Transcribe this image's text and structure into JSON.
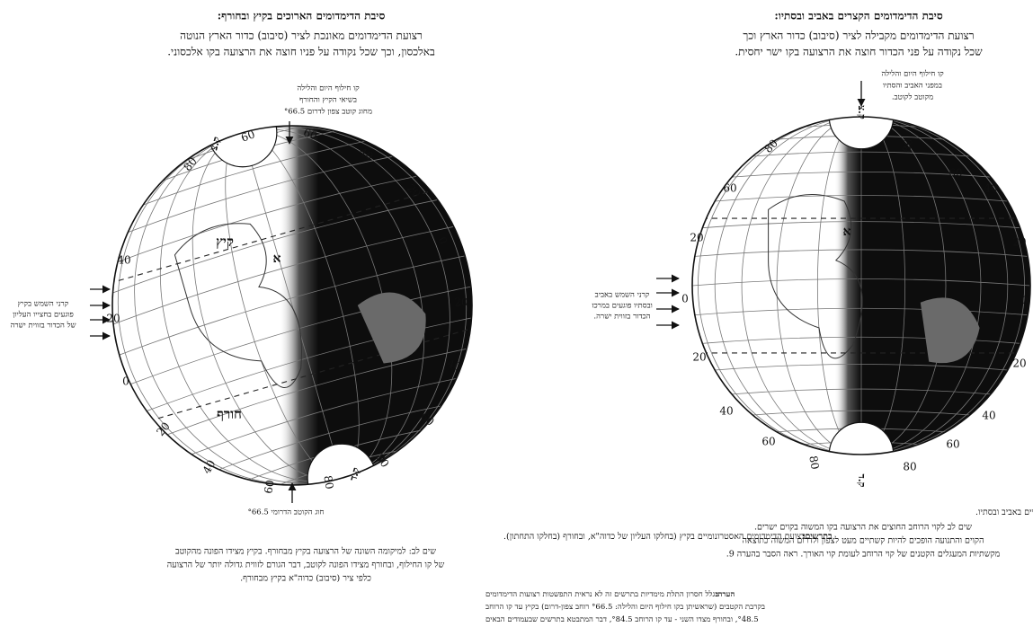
{
  "left_panel": {
    "title": "סיבת הדימדומים הארוכים בקיץ ובחורף:",
    "description": [
      "רצועת הדימדומים מאונכת לציר (סיבוב) כדור הארץ הנוטה",
      "באלכסון, וכך שכל נקודה על פניו חוצה את הרצועה בקו אלכסוני."
    ],
    "top_note": [
      "קו חילוף היום והלילה",
      "בשיאי הקיץ והחורף",
      "מחוג קוטב צפון לדרום °66.5"
    ],
    "side_note": [
      "קרני השמש בקיץ",
      "פוגעים בחצייו העליון",
      "של הכדור בזווית ישרה"
    ],
    "bottom_note": "חוג הקוטב הדרומי °66.5",
    "globe_labels": {
      "north_pole": "ק.צ",
      "summer": "קיץ",
      "place": "א",
      "winter": "חורף",
      "south_pole": "ק.ד"
    },
    "latitude_labels": [
      "80",
      "60",
      "60",
      "40",
      "20",
      "0",
      "20",
      "40",
      "60",
      "80",
      "80",
      "60",
      "40",
      "20",
      "0",
      "20",
      "40"
    ],
    "caption_lead": "בתרשים:",
    "caption_text": "רצועת הדימדומים האסטרונומיים בקיץ (בחלקו העליון של כדוה\"א, ובחורף (בחלקו התחתון).",
    "notes": [
      "שים לב: למיקומה השונה של הרצועה בקיץ מבחורף. בקיץ מצידו הפונה מהקוטב",
      "של קו החילוף, ובחורף מצידו הפונה לקוטב, דבר הגורם לזווית גדולה יותר של הרצועה",
      "כלפי ציר (סיבוב) כדוה\"א בקיץ מבחורף."
    ],
    "remark_lead": "הערה:",
    "remark": [
      "בגלל חסרון התלת מימדיות בתרשים זה לא נראית התפשטות רצועות הדימדומים",
      "בקרבת הקטבים (שראשיתן בקו חילוף היום והלילה: °66.5 רוחב צפון-דרום) בקיץ עד קו הרוחב",
      "°48.5, ובחורף מצדו השני - עד קו הרוחב °84.5, דבר המתבטא בתרשים שבעמודים הבאים"
    ]
  },
  "right_panel": {
    "title": "סיבת הדימדומים הקצרים באביב ובסתיו:",
    "description": [
      "רצועת הדימדומים מקבילה לציר (סיבוב) כדור הארץ וכך",
      "שכל נקודה על פני הכדור חוצה את הרצועה בקו ישר יחסית."
    ],
    "top_note": [
      "קו חילוף היום והלילה",
      "במפני האביב והסתיו",
      "מקוטב לקוטב."
    ],
    "side_note": [
      "קרני השמש באביב",
      "ובסתיו פוגעים במרכז",
      "הכדור בזווית ישרה."
    ],
    "globe_labels": {
      "north_pole": "ק.צ",
      "place": "א",
      "south_pole": "ק.ד"
    },
    "latitude_labels": [
      "80",
      "60",
      "20",
      "0",
      "20",
      "40",
      "60",
      "80",
      "80",
      "60",
      "40",
      "20",
      "0",
      "20",
      "40",
      "60",
      "80"
    ],
    "caption_lead": "בתרשים:",
    "caption_text": "רצועת הדימדומים האסטרונומיים באביב ובסתיו.",
    "notes": [
      "שים לב לקוי הרוחב החוצים את הרצועה בקו המשוה בקוים ישרים.",
      "הקוים והתנועה הופכים להיות קשתיים מעט לצפון ולדרום המשוה כתוצאה",
      "מקשתיות המעגלים הקטנים של קוי הרוחב לעומת קוי האורך. ראה הסבר בהערה 9."
    ]
  }
}
